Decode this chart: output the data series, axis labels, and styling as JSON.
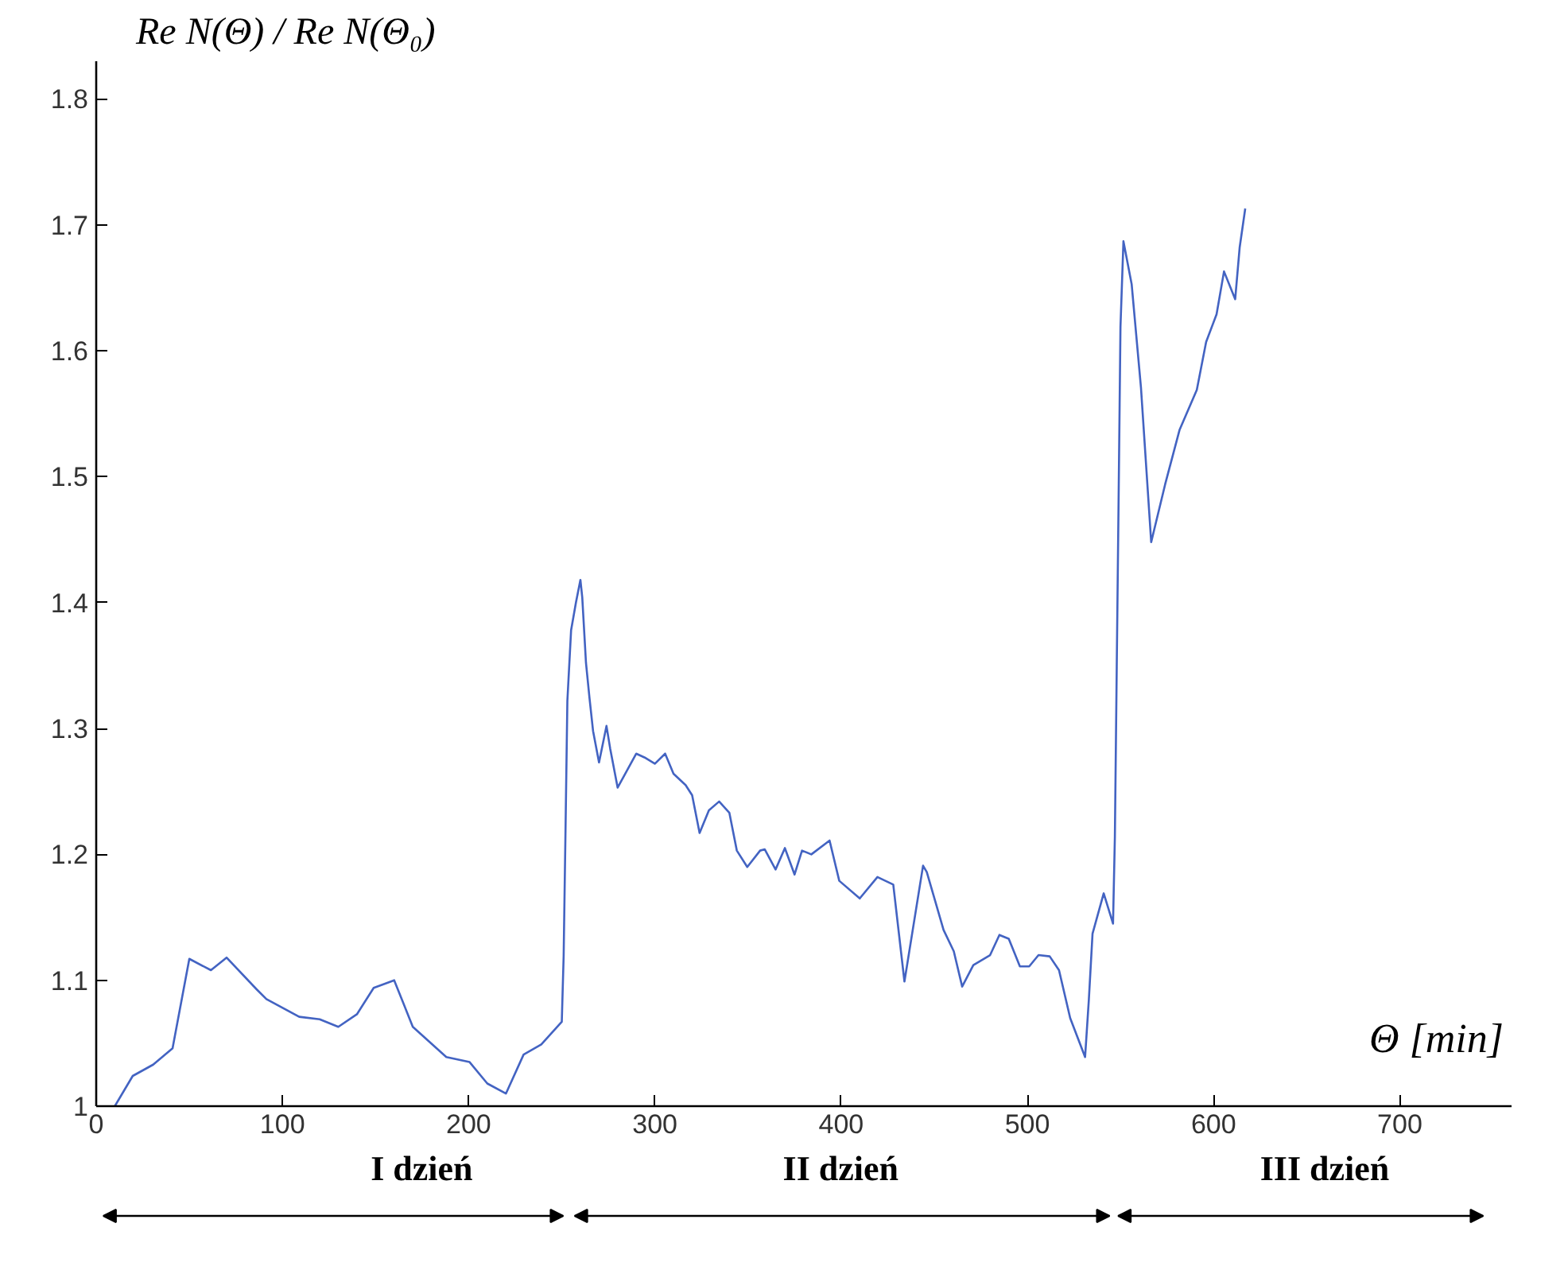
{
  "chart_data": {
    "type": "line",
    "ylabel": "Re N(Θ) / Re N(Θ₀)",
    "xlabel": "Θ [min]",
    "annotations": [
      "I dzień",
      "II dzień",
      "III dzień"
    ],
    "xlim": [
      0,
      760
    ],
    "ylim": [
      1,
      1.83
    ],
    "xticks": [
      0,
      100,
      200,
      300,
      400,
      500,
      600,
      700
    ],
    "yticks": [
      1,
      1.1,
      1.2,
      1.3,
      1.4,
      1.5,
      1.6,
      1.7,
      1.8
    ],
    "grid": false,
    "marker": "none",
    "line_style": "solid",
    "series": [
      {
        "color": "#4363c2",
        "x": [
          10,
          19.6,
          30.6,
          41,
          50,
          61.6,
          70,
          86,
          91.4,
          109,
          120,
          130,
          140,
          149,
          160,
          170,
          188,
          200.5,
          210,
          220,
          229.5,
          239,
          250,
          251,
          252,
          253,
          255,
          257.6,
          260,
          261,
          263,
          264.9,
          266.8,
          270,
          274,
          276,
          280,
          290,
          294.4,
          300,
          305.5,
          310,
          316.5,
          320,
          324,
          329,
          334.5,
          340,
          344,
          349.6,
          356.5,
          359,
          364.8,
          369.8,
          375,
          379,
          384,
          393.8,
          399,
          410,
          419.5,
          428,
          434,
          444,
          446,
          455,
          460.5,
          465,
          471,
          480,
          485,
          490,
          496,
          501,
          506,
          512,
          517,
          523,
          531,
          533,
          535,
          541,
          546,
          547,
          548,
          549,
          550,
          551.6,
          556,
          561,
          566.5,
          574,
          581.7,
          591,
          596,
          601.6,
          605.6,
          611.6,
          614,
          617
        ],
        "values": [
          1.0,
          1.024,
          1.033,
          1.046,
          1.117,
          1.108,
          1.118,
          1.093,
          1.085,
          1.071,
          1.069,
          1.063,
          1.073,
          1.094,
          1.1,
          1.063,
          1.039,
          1.035,
          1.018,
          1.01,
          1.041,
          1.049,
          1.067,
          1.119,
          1.219,
          1.322,
          1.378,
          1.4,
          1.418,
          1.404,
          1.352,
          1.324,
          1.298,
          1.273,
          1.302,
          1.284,
          1.253,
          1.28,
          1.277,
          1.272,
          1.28,
          1.264,
          1.255,
          1.247,
          1.217,
          1.235,
          1.242,
          1.233,
          1.203,
          1.19,
          1.203,
          1.204,
          1.188,
          1.205,
          1.184,
          1.203,
          1.2,
          1.211,
          1.179,
          1.165,
          1.182,
          1.176,
          1.099,
          1.191,
          1.186,
          1.14,
          1.123,
          1.095,
          1.112,
          1.12,
          1.136,
          1.133,
          1.111,
          1.111,
          1.12,
          1.119,
          1.108,
          1.07,
          1.039,
          1.084,
          1.137,
          1.169,
          1.145,
          1.214,
          1.349,
          1.482,
          1.619,
          1.687,
          1.653,
          1.571,
          1.448,
          1.494,
          1.537,
          1.569,
          1.607,
          1.629,
          1.663,
          1.641,
          1.682,
          1.713
        ]
      }
    ]
  }
}
